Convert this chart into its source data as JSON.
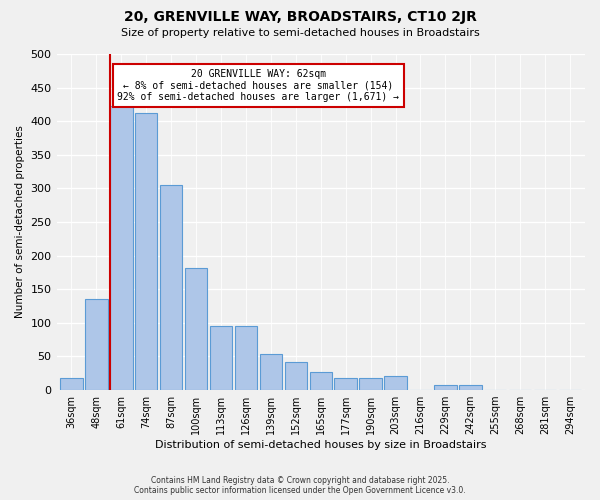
{
  "title": "20, GRENVILLE WAY, BROADSTAIRS, CT10 2JR",
  "subtitle": "Size of property relative to semi-detached houses in Broadstairs",
  "xlabel": "Distribution of semi-detached houses by size in Broadstairs",
  "ylabel": "Number of semi-detached properties",
  "categories": [
    "36sqm",
    "48sqm",
    "61sqm",
    "74sqm",
    "87sqm",
    "100sqm",
    "113sqm",
    "126sqm",
    "139sqm",
    "152sqm",
    "165sqm",
    "177sqm",
    "190sqm",
    "203sqm",
    "216sqm",
    "229sqm",
    "242sqm",
    "255sqm",
    "268sqm",
    "281sqm",
    "294sqm"
  ],
  "values": [
    18,
    135,
    422,
    412,
    305,
    181,
    96,
    96,
    53,
    42,
    27,
    18,
    18,
    21,
    0,
    7,
    7,
    0,
    0,
    0,
    0
  ],
  "bar_color": "#aec6e8",
  "bar_edge_color": "#5b9bd5",
  "vline_color": "#cc0000",
  "annotation_title": "20 GRENVILLE WAY: 62sqm",
  "annotation_line1": "← 8% of semi-detached houses are smaller (154)",
  "annotation_line2": "92% of semi-detached houses are larger (1,671) →",
  "annotation_box_color": "#cc0000",
  "ylim": [
    0,
    500
  ],
  "yticks": [
    0,
    50,
    100,
    150,
    200,
    250,
    300,
    350,
    400,
    450,
    500
  ],
  "footer1": "Contains HM Land Registry data © Crown copyright and database right 2025.",
  "footer2": "Contains public sector information licensed under the Open Government Licence v3.0.",
  "bg_color": "#f0f0f0"
}
